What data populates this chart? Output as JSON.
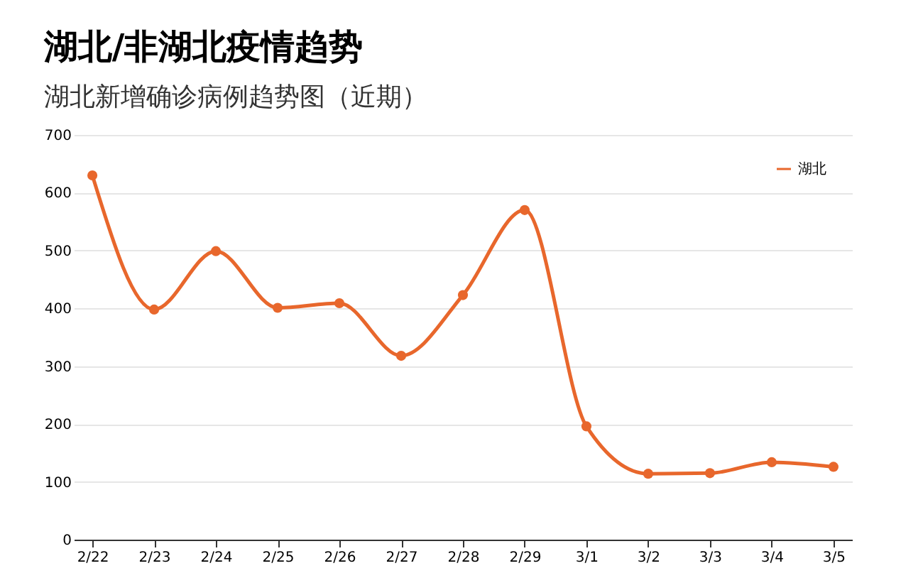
{
  "chart_data": {
    "type": "line",
    "title": "湖北/非湖北疫情趋势",
    "subtitle": "湖北新增确诊病例趋势图（近期）",
    "categories": [
      "2/22",
      "2/23",
      "2/24",
      "2/25",
      "2/26",
      "2/27",
      "2/28",
      "2/29",
      "3/1",
      "3/2",
      "3/3",
      "3/4",
      "3/5"
    ],
    "series": [
      {
        "name": "湖北",
        "color": "#e8672c",
        "values": [
          630,
          398,
          499,
          401,
          409,
          318,
          423,
          570,
          196,
          114,
          115,
          134,
          126
        ]
      }
    ],
    "ylim": [
      0,
      700
    ],
    "yticks": [
      0,
      100,
      200,
      300,
      400,
      500,
      600,
      700
    ],
    "grid": "y",
    "legend": "top right",
    "marker": "circle",
    "line_style": "solid"
  }
}
